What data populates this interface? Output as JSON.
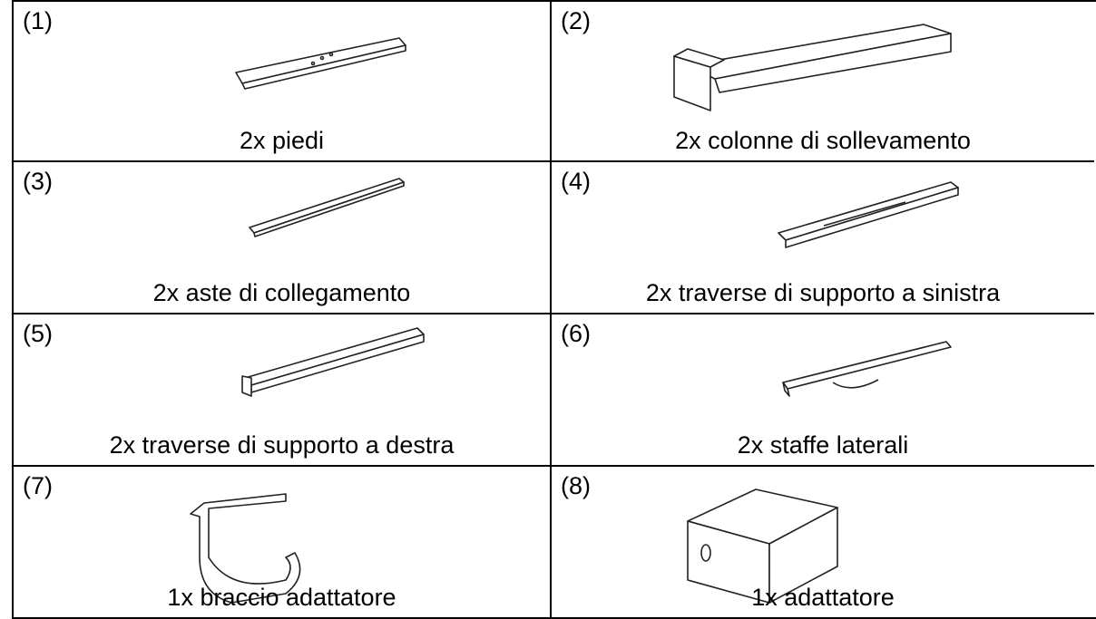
{
  "table": {
    "rows": [
      [
        {
          "number": "(1)",
          "caption": "2x piedi"
        },
        {
          "number": "(2)",
          "caption": "2x colonne di sollevamento"
        }
      ],
      [
        {
          "number": "(3)",
          "caption": "2x aste di collegamento"
        },
        {
          "number": "(4)",
          "caption": "2x traverse di supporto a sinistra"
        }
      ],
      [
        {
          "number": "(5)",
          "caption": "2x traverse di supporto a destra"
        },
        {
          "number": "(6)",
          "caption": "2x staffe laterali"
        }
      ],
      [
        {
          "number": "(7)",
          "caption": "1x braccio adattatore"
        },
        {
          "number": "(8)",
          "caption": "1x adattatore"
        }
      ]
    ]
  }
}
